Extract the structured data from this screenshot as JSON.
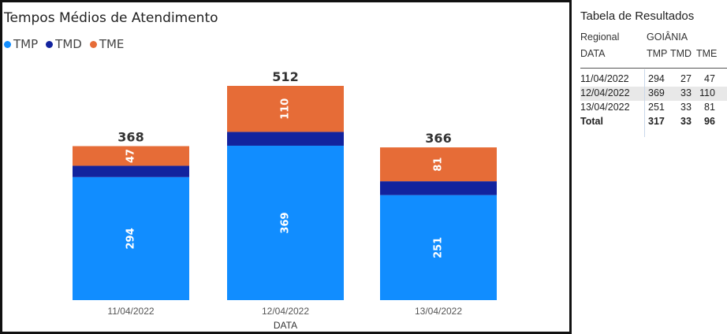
{
  "chart": {
    "title": "Tempos Médios de Atendimento",
    "legend": [
      {
        "label": "TMP",
        "color": "#118DFF"
      },
      {
        "label": "TMD",
        "color": "#12239E"
      },
      {
        "label": "TME",
        "color": "#E66C37"
      }
    ],
    "xlabel": "DATA"
  },
  "chart_data": {
    "type": "bar",
    "stacked": true,
    "title": "Tempos Médios de Atendimento",
    "xlabel": "DATA",
    "ylabel": "",
    "categories": [
      "11/04/2022",
      "12/04/2022",
      "13/04/2022"
    ],
    "series": [
      {
        "name": "TMP",
        "color": "#118DFF",
        "values": [
          294,
          369,
          251
        ]
      },
      {
        "name": "TMD",
        "color": "#12239E",
        "values": [
          27,
          33,
          33
        ]
      },
      {
        "name": "TME",
        "color": "#E66C37",
        "values": [
          47,
          110,
          81
        ]
      }
    ],
    "segment_labels_shown": [
      "TMP",
      "TME"
    ],
    "totals": [
      368,
      512,
      366
    ],
    "ylim": [
      0,
      512
    ],
    "grid": false,
    "legend_position": "top-left"
  },
  "table": {
    "title": "Tabela de Resultados",
    "regional_label": "Regional",
    "regional_value": "GOIÂNIA",
    "columns": [
      "DATA",
      "TMP",
      "TMD",
      "TME"
    ],
    "rows": [
      [
        "11/04/2022",
        "294",
        "27",
        "47"
      ],
      [
        "12/04/2022",
        "369",
        "33",
        "110"
      ],
      [
        "13/04/2022",
        "251",
        "33",
        "81"
      ]
    ],
    "total": [
      "Total",
      "317",
      "33",
      "96"
    ]
  }
}
